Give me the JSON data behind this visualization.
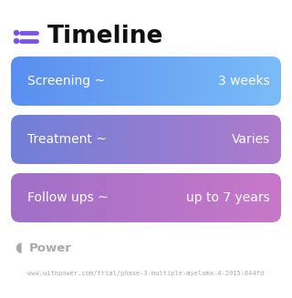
{
  "title": "Timeline",
  "title_fontsize": 19,
  "title_fontweight": "bold",
  "title_color": "#111111",
  "icon_color": "#7B52F0",
  "background_color": "#ffffff",
  "rows": [
    {
      "left_text": "Screening ~",
      "right_text": "3 weeks",
      "color_start": "#5B8EF0",
      "color_end": "#7BBCF8"
    },
    {
      "left_text": "Treatment ~",
      "right_text": "Varies",
      "color_start": "#7080D8",
      "color_end": "#B07ACC"
    },
    {
      "left_text": "Follow ups ~",
      "right_text": "up to 7 years",
      "color_start": "#A070C8",
      "color_end": "#C878C8"
    }
  ],
  "text_color": "#ffffff",
  "text_fontsize": 10,
  "watermark_text": "Power",
  "watermark_color": "#aaaaaa",
  "url_text": "www.withpower.com/trial/phase-3-multiple-myeloma-4-2015-644fd",
  "url_fontsize": 5.0,
  "fig_width": 3.2,
  "fig_height": 3.27,
  "dpi": 100
}
